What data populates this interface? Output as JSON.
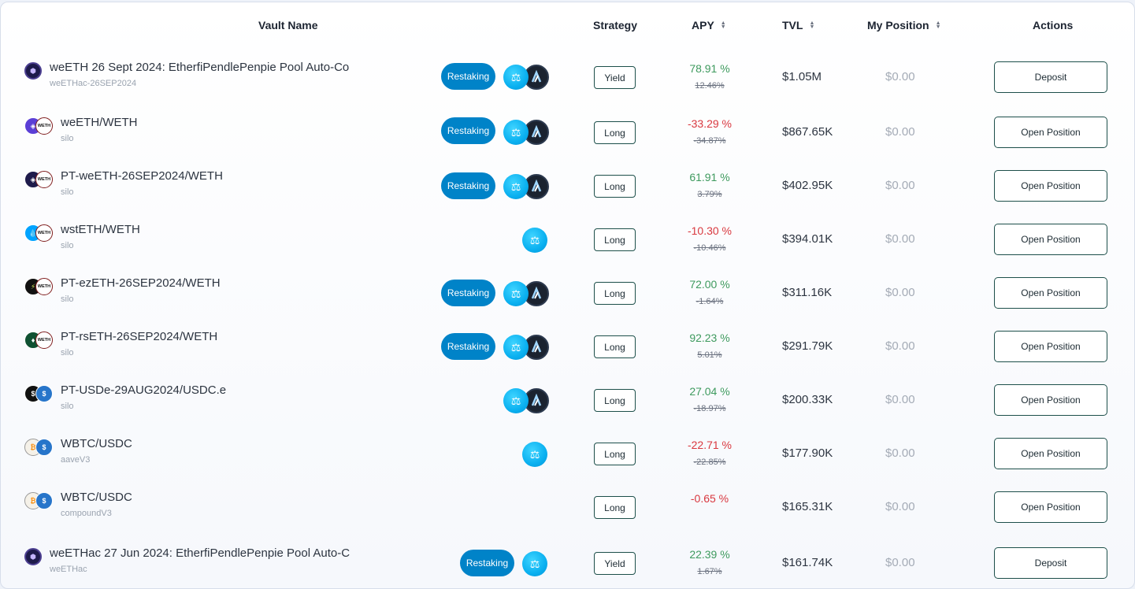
{
  "header": {
    "vault_name": "Vault Name",
    "strategy": "Strategy",
    "apy": "APY",
    "tvl": "TVL",
    "my_position": "My Position",
    "actions": "Actions"
  },
  "rows": [
    {
      "name": "weETH 26 Sept 2024: EtherfiPendlePenpie Pool Auto-Co",
      "sub": "weETHac-26SEP2024",
      "restaking": "Restaking",
      "strategy": "Yield",
      "apy": "78.91 %",
      "apy_old": "12.46%",
      "apy_dir": "pos",
      "tvl": "$1.05M",
      "position": "$0.00",
      "action": "Deposit"
    },
    {
      "name": "weETH/WETH",
      "sub": "silo",
      "restaking": "Restaking",
      "strategy": "Long",
      "apy": "-33.29 %",
      "apy_old": "-34.87%",
      "apy_dir": "neg",
      "tvl": "$867.65K",
      "position": "$0.00",
      "action": "Open Position"
    },
    {
      "name": "PT-weETH-26SEP2024/WETH",
      "sub": "silo",
      "restaking": "Restaking",
      "strategy": "Long",
      "apy": "61.91 %",
      "apy_old": "3.79%",
      "apy_dir": "pos",
      "tvl": "$402.95K",
      "position": "$0.00",
      "action": "Open Position"
    },
    {
      "name": "wstETH/WETH",
      "sub": "silo",
      "restaking": "",
      "strategy": "Long",
      "apy": "-10.30 %",
      "apy_old": "-10.46%",
      "apy_dir": "neg",
      "tvl": "$394.01K",
      "position": "$0.00",
      "action": "Open Position"
    },
    {
      "name": "PT-ezETH-26SEP2024/WETH",
      "sub": "silo",
      "restaking": "Restaking",
      "strategy": "Long",
      "apy": "72.00 %",
      "apy_old": "-1.64%",
      "apy_dir": "pos",
      "tvl": "$311.16K",
      "position": "$0.00",
      "action": "Open Position"
    },
    {
      "name": "PT-rsETH-26SEP2024/WETH",
      "sub": "silo",
      "restaking": "Restaking",
      "strategy": "Long",
      "apy": "92.23 %",
      "apy_old": "5.01%",
      "apy_dir": "pos",
      "tvl": "$291.79K",
      "position": "$0.00",
      "action": "Open Position"
    },
    {
      "name": "PT-USDe-29AUG2024/USDC.e",
      "sub": "silo",
      "restaking": "",
      "strategy": "Long",
      "apy": "27.04 %",
      "apy_old": "-18.97%",
      "apy_dir": "pos",
      "tvl": "$200.33K",
      "position": "$0.00",
      "action": "Open Position"
    },
    {
      "name": "WBTC/USDC",
      "sub": "aaveV3",
      "restaking": "",
      "strategy": "Long",
      "apy": "-22.71 %",
      "apy_old": "-22.85%",
      "apy_dir": "neg",
      "tvl": "$177.90K",
      "position": "$0.00",
      "action": "Open Position"
    },
    {
      "name": "WBTC/USDC",
      "sub": "compoundV3",
      "restaking": "",
      "strategy": "Long",
      "apy": "-0.65 %",
      "apy_old": "",
      "apy_dir": "neg",
      "tvl": "$165.31K",
      "position": "$0.00",
      "action": "Open Position"
    },
    {
      "name": "weETHac 27 Jun 2024: EtherfiPendlePenpie Pool Auto-C",
      "sub": "weETHac",
      "restaking": "Restaking",
      "strategy": "Yield",
      "apy": "22.39 %",
      "apy_old": "1.67%",
      "apy_dir": "pos",
      "tvl": "$161.74K",
      "position": "$0.00",
      "action": "Deposit"
    }
  ],
  "icons": {
    "weeth": "weeth-coin-icon",
    "weth_label": "WETH",
    "balance": "scale-icon",
    "arbitrum": "arbitrum-icon",
    "sort": "sort-arrows-icon"
  },
  "colors": {
    "positive": "#3e9a5e",
    "negative": "#d9383f",
    "pill": "#0083c8",
    "border": "#1d4f4a"
  }
}
